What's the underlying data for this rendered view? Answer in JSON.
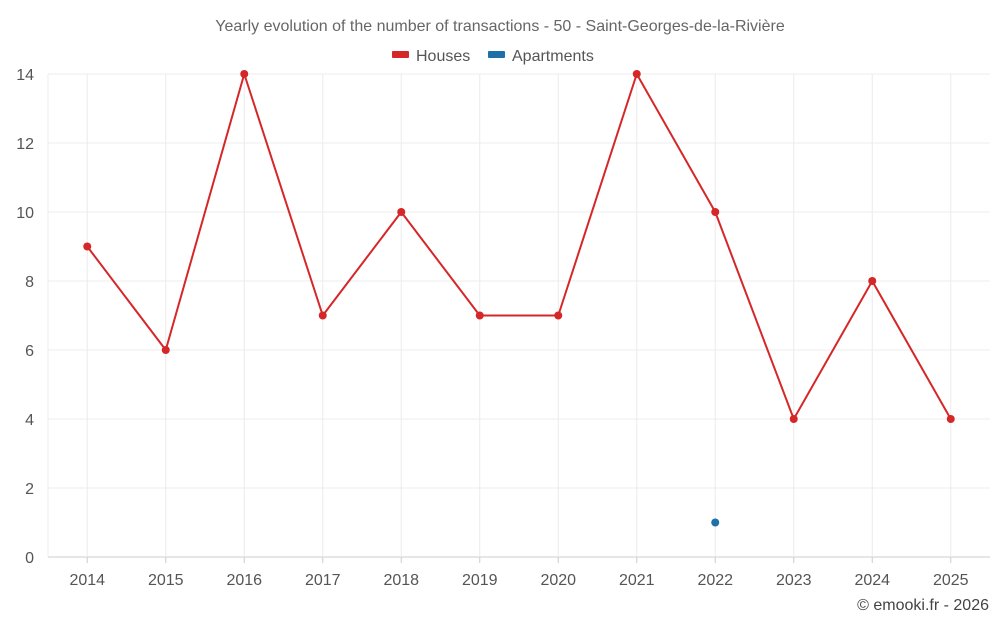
{
  "chart_data": {
    "type": "line",
    "title": "Yearly evolution of the number of transactions - 50 - Saint-Georges-de-la-Rivière",
    "categories": [
      "2014",
      "2015",
      "2016",
      "2017",
      "2018",
      "2019",
      "2020",
      "2021",
      "2022",
      "2023",
      "2024",
      "2025"
    ],
    "series": [
      {
        "name": "Houses",
        "color": "#d62728",
        "values": [
          9,
          6,
          14,
          7,
          10,
          7,
          7,
          14,
          10,
          4,
          8,
          4
        ]
      },
      {
        "name": "Apartments",
        "color": "#1f6fa8",
        "values": [
          null,
          null,
          null,
          null,
          null,
          null,
          null,
          null,
          1,
          null,
          null,
          null
        ]
      }
    ],
    "ylim": [
      0,
      14
    ],
    "yticks": [
      0,
      2,
      4,
      6,
      8,
      10,
      12,
      14
    ],
    "grid": true,
    "legend_position": "top-center",
    "xlabel": "",
    "ylabel": ""
  },
  "credit": "© emooki.fr - 2026"
}
